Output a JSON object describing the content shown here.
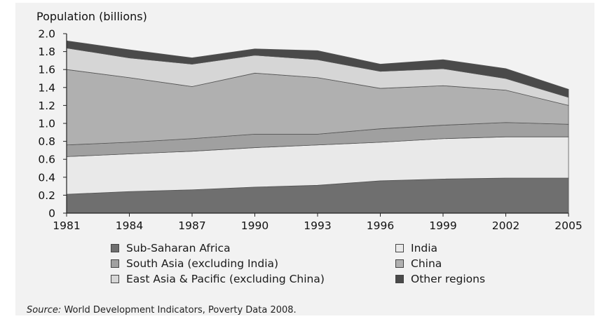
{
  "chart_data": {
    "type": "area",
    "stacked": true,
    "title": "",
    "ylabel": "Population (billions)",
    "xlabel": "",
    "x": [
      1981,
      1984,
      1987,
      1990,
      1993,
      1996,
      1999,
      2002,
      2005
    ],
    "x_ticks": [
      "1981",
      "1984",
      "1987",
      "1990",
      "1993",
      "1996",
      "1999",
      "2002",
      "2005"
    ],
    "ylim": [
      0,
      2.0
    ],
    "y_ticks": [
      "0",
      "0.2",
      "0.4",
      "0.6",
      "0.8",
      "1.0",
      "1.2",
      "1.4",
      "1.6",
      "1.8",
      "2.0"
    ],
    "series": [
      {
        "name": "Sub-Saharan Africa",
        "color": "#6f6f6f",
        "values": [
          0.21,
          0.24,
          0.26,
          0.29,
          0.31,
          0.36,
          0.38,
          0.39,
          0.39
        ]
      },
      {
        "name": "India",
        "color": "#e9e9e9",
        "values": [
          0.42,
          0.42,
          0.43,
          0.44,
          0.45,
          0.43,
          0.45,
          0.46,
          0.46
        ]
      },
      {
        "name": "South Asia (excluding India)",
        "color": "#a0a0a0",
        "values": [
          0.13,
          0.13,
          0.14,
          0.15,
          0.12,
          0.15,
          0.15,
          0.16,
          0.14
        ]
      },
      {
        "name": "China",
        "color": "#b0b0b0",
        "values": [
          0.84,
          0.72,
          0.58,
          0.68,
          0.63,
          0.45,
          0.44,
          0.36,
          0.21
        ]
      },
      {
        "name": "East Asia & Pacific (excluding China)",
        "color": "#d6d6d6",
        "values": [
          0.24,
          0.22,
          0.25,
          0.2,
          0.2,
          0.19,
          0.19,
          0.13,
          0.09
        ]
      },
      {
        "name": "Other regions",
        "color": "#4a4a4a",
        "values": [
          0.08,
          0.09,
          0.07,
          0.07,
          0.1,
          0.08,
          0.1,
          0.11,
          0.09
        ]
      }
    ],
    "legend_position": "bottom",
    "source_label": "Source:",
    "source_text": " World Development Indicators, Poverty Data 2008."
  },
  "legend": [
    {
      "label": "Sub-Saharan Africa",
      "color": "#6f6f6f"
    },
    {
      "label": "India",
      "color": "#e9e9e9"
    },
    {
      "label": "South Asia (excluding India)",
      "color": "#a0a0a0"
    },
    {
      "label": "China",
      "color": "#b0b0b0"
    },
    {
      "label": "East Asia & Pacific (excluding China)",
      "color": "#d6d6d6"
    },
    {
      "label": "Other regions",
      "color": "#4a4a4a"
    }
  ]
}
